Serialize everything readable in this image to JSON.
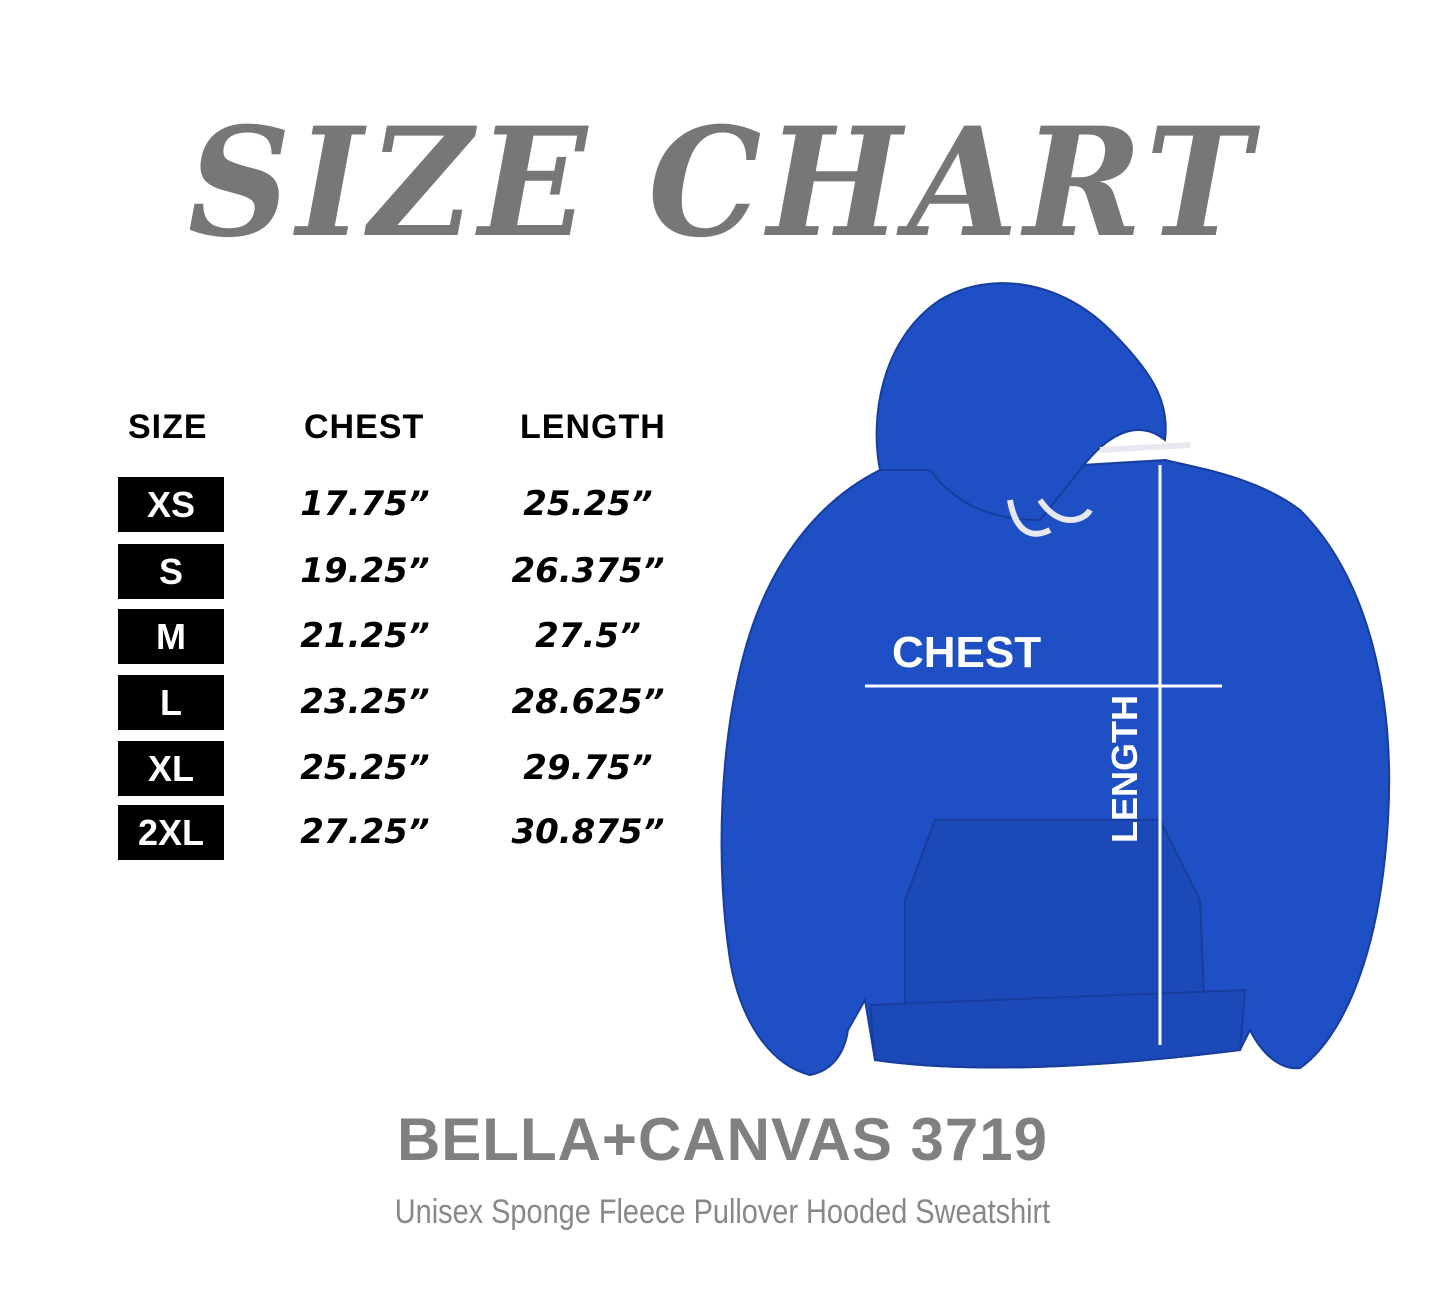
{
  "title": "SIZE CHART",
  "table": {
    "headers": [
      "SIZE",
      "CHEST",
      "LENGTH"
    ],
    "rows": [
      {
        "size": "XS",
        "chest": "17.75”",
        "length": "25.25”"
      },
      {
        "size": "S",
        "chest": "19.25”",
        "length": "26.375”"
      },
      {
        "size": "M",
        "chest": "21.25”",
        "length": "27.5”"
      },
      {
        "size": "L",
        "chest": "23.25”",
        "length": "28.625”"
      },
      {
        "size": "XL",
        "chest": "25.25”",
        "length": "29.75”"
      },
      {
        "size": "2XL",
        "chest": "27.25”",
        "length": "30.875”"
      }
    ]
  },
  "diagram": {
    "chest_label": "CHEST",
    "length_label": "LENGTH",
    "garment_color": "#1f4fc4"
  },
  "product": {
    "name": "BELLA+CANVAS 3719",
    "description": "Unisex Sponge Fleece Pullover Hooded Sweatshirt"
  }
}
